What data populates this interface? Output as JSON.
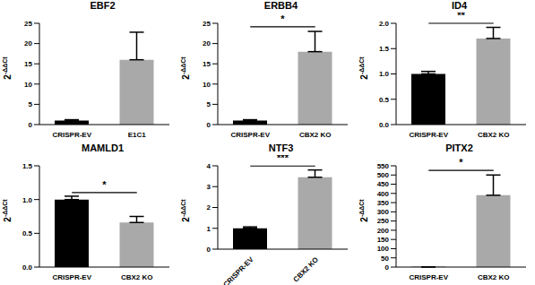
{
  "chart_data": [
    {
      "type": "bar",
      "title": "EBF2",
      "categories": [
        "CRISPR-EV",
        "E1C1"
      ],
      "values": [
        1,
        16
      ],
      "errors": [
        0.2,
        6.8
      ],
      "colors": [
        "#000000",
        "#a9a9a9"
      ],
      "ylim": [
        0,
        25
      ],
      "yticks": [
        0,
        5,
        10,
        15,
        20,
        25
      ],
      "y_label": "2-ΔΔCt"
    },
    {
      "type": "bar",
      "title": "ERBB4",
      "categories": [
        "CRISPR-EV",
        "CBX2 KO"
      ],
      "values": [
        1,
        18
      ],
      "errors": [
        0.2,
        5
      ],
      "colors": [
        "#000000",
        "#a9a9a9"
      ],
      "ylim": [
        0,
        25
      ],
      "yticks": [
        0,
        5,
        10,
        15,
        20,
        25
      ],
      "y_label": "2-ΔΔCt",
      "annotation": "*"
    },
    {
      "type": "bar",
      "title": "ID4",
      "categories": [
        "CRISPR-EV",
        "CBX2 KO"
      ],
      "values": [
        1.0,
        1.7
      ],
      "errors": [
        0.05,
        0.22
      ],
      "colors": [
        "#000000",
        "#a9a9a9"
      ],
      "ylim": [
        0,
        2
      ],
      "yticks": [
        {
          "value": 0,
          "label": "0.0"
        },
        {
          "value": 0.5,
          "label": "0.5"
        },
        {
          "value": 1,
          "label": "1.0"
        },
        {
          "value": 1.5,
          "label": "1.5"
        },
        {
          "value": 2,
          "label": "2.0"
        }
      ],
      "y_label": "2-ΔΔCt",
      "annotation": "**"
    },
    {
      "type": "bar",
      "title": "MAMLD1",
      "categories": [
        "CRISPR-EV",
        "CBX2 KO"
      ],
      "values": [
        1.0,
        0.66
      ],
      "errors": [
        0.05,
        0.09
      ],
      "colors": [
        "#000000",
        "#a9a9a9"
      ],
      "ylim": [
        0,
        1.5
      ],
      "yticks": [
        {
          "value": 0,
          "label": "0.0"
        },
        {
          "value": 0.5,
          "label": "0.5"
        },
        {
          "value": 1,
          "label": "1.0"
        },
        {
          "value": 1.5,
          "label": "1.5"
        }
      ],
      "y_label": "2-ΔΔCt",
      "annotation": "*"
    },
    {
      "type": "bar",
      "title": "NTF3",
      "categories": [
        "CRISPR-EV",
        "CBX2 KO"
      ],
      "values": [
        1.0,
        3.45
      ],
      "errors": [
        0.07,
        0.35
      ],
      "colors": [
        "#000000",
        "#a9a9a9"
      ],
      "ylim": [
        0,
        4
      ],
      "yticks": [
        0,
        1,
        2,
        3,
        4
      ],
      "y_label": "2-ΔΔCt",
      "annotation": "***"
    },
    {
      "type": "bar",
      "title": "PITX2",
      "categories": [
        "CRISPR-EV",
        "CBX2 KO"
      ],
      "values": [
        1,
        390
      ],
      "errors": [
        0,
        110
      ],
      "colors": [
        "#000000",
        "#a9a9a9"
      ],
      "ylim": [
        0,
        550
      ],
      "yticks": [
        0,
        50,
        100,
        150,
        200,
        250,
        300,
        350,
        400,
        450,
        500,
        550
      ],
      "y_label": "2-ΔΔCt",
      "annotation": "*"
    }
  ]
}
